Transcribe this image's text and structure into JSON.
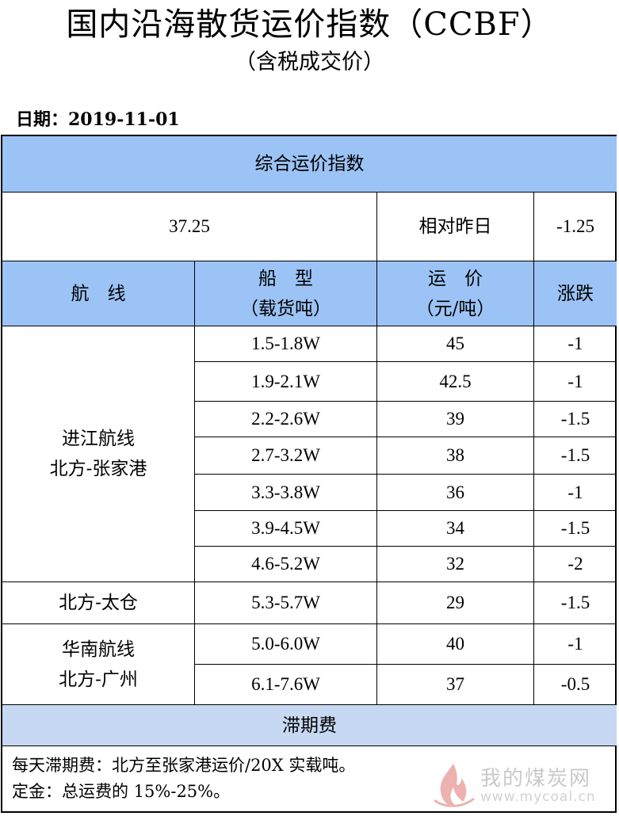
{
  "document": {
    "title": "国内沿海散货运价指数（CCBF）",
    "subtitle": "（含税成交价）",
    "date_label": "日期：2019-11-01"
  },
  "table": {
    "composite_header": "综合运价指数",
    "composite_value": "37.25",
    "compare_label": "相对昨日",
    "compare_value": "-1.25",
    "columns": {
      "route": "航　线",
      "ship_type": "船　型",
      "ship_type_unit": "（载货吨）",
      "freight": "运　价",
      "freight_unit": "（元/吨）",
      "change": "涨跌"
    },
    "groups": [
      {
        "route_line1": "进江航线",
        "route_line2": "北方-张家港"
      },
      {
        "route_line1": "北方-太仓"
      },
      {
        "route_line1": "华南航线",
        "route_line2": "北方-广州"
      }
    ],
    "rows": [
      {
        "ship": "1.5-1.8W",
        "price": "45",
        "change": "-1"
      },
      {
        "ship": "1.9-2.1W",
        "price": "42.5",
        "change": "-1"
      },
      {
        "ship": "2.2-2.6W",
        "price": "39",
        "change": "-1.5"
      },
      {
        "ship": "2.7-3.2W",
        "price": "38",
        "change": "-1.5"
      },
      {
        "ship": "3.3-3.8W",
        "price": "36",
        "change": "-1"
      },
      {
        "ship": "3.9-4.5W",
        "price": "34",
        "change": "-1.5"
      },
      {
        "ship": "4.6-5.2W",
        "price": "32",
        "change": "-2"
      },
      {
        "ship": "5.3-5.7W",
        "price": "29",
        "change": "-1.5"
      },
      {
        "ship": "5.0-6.0W",
        "price": "40",
        "change": "-1"
      },
      {
        "ship": "6.1-7.6W",
        "price": "37",
        "change": "-0.5"
      }
    ],
    "demurrage_header": "滞期费",
    "notes": [
      "每天滞期费：北方至张家港运价/20X 实载吨。",
      "定金：总运费的 15%-25%。"
    ]
  },
  "watermark": {
    "text_cn": "我的煤炭网",
    "text_en": "www.mycoal.cn",
    "icon": "flame-logo-icon"
  },
  "colors": {
    "header_blue": "#9cc3f5",
    "band_blue": "#c7d9f2"
  }
}
